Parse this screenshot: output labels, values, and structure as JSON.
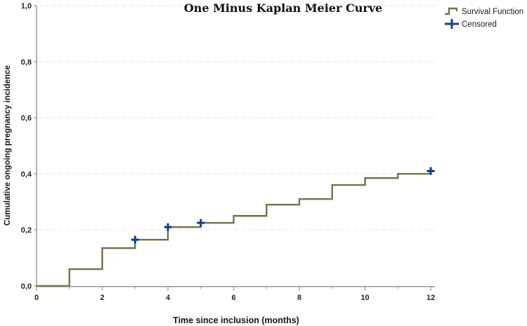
{
  "figure": {
    "title": "One Minus Kaplan Meier Curve",
    "x_axis_label": "Time since inclusion (months)",
    "y_axis_label": "Cumulative ongoing pregnancy incidence",
    "legend": {
      "items": [
        {
          "label": "Survival Function",
          "marker": "step-line",
          "color": "#64794a"
        },
        {
          "label": "Censored",
          "marker": "plus",
          "color": "#1d3c8e"
        }
      ]
    }
  },
  "chart_data": {
    "type": "line",
    "subtype": "kaplan-meier-one-minus-survival-step",
    "title": "One Minus Kaplan Meier Curve",
    "xlabel": "Time since inclusion (months)",
    "ylabel": "Cumulative ongoing pregnancy incidence",
    "xlim": [
      0,
      12.2
    ],
    "ylim": [
      0,
      1.0
    ],
    "x_major_ticks": [
      0,
      2,
      4,
      6,
      8,
      10,
      12
    ],
    "x_tick_labels": [
      "0",
      "2",
      "4",
      "6",
      "8",
      "10",
      "12"
    ],
    "x_minor_ticks": [
      1,
      3,
      5,
      7,
      9,
      11
    ],
    "y_ticks": [
      0.0,
      0.2,
      0.4,
      0.6,
      0.8,
      1.0
    ],
    "y_tick_labels": [
      "0,0",
      "0,2",
      "0,4",
      "0,6",
      "0,8",
      "1,0"
    ],
    "grid": "horizontal dashed lines at y ticks above 0",
    "legend_position": "top-right outside plot",
    "series": [
      {
        "name": "Survival Function",
        "type": "step-post",
        "color": "#64794a",
        "x": [
          0,
          1,
          2,
          3,
          4,
          5,
          6,
          7,
          8,
          9,
          10,
          11,
          12
        ],
        "y": [
          0.0,
          0.06,
          0.135,
          0.165,
          0.21,
          0.225,
          0.25,
          0.29,
          0.31,
          0.36,
          0.385,
          0.4,
          0.41
        ]
      },
      {
        "name": "Censored",
        "type": "scatter",
        "marker": "plus",
        "color": "#1d3c8e",
        "x": [
          3,
          4,
          5,
          12
        ],
        "y": [
          0.165,
          0.21,
          0.225,
          0.41
        ]
      }
    ]
  },
  "colors": {
    "background": "#ffffff",
    "curve": "#64794a",
    "censored": "#1d3c8e",
    "grid": "#f3ecdb",
    "axis": "#9e9e9e",
    "text": "#1c1c1c"
  }
}
